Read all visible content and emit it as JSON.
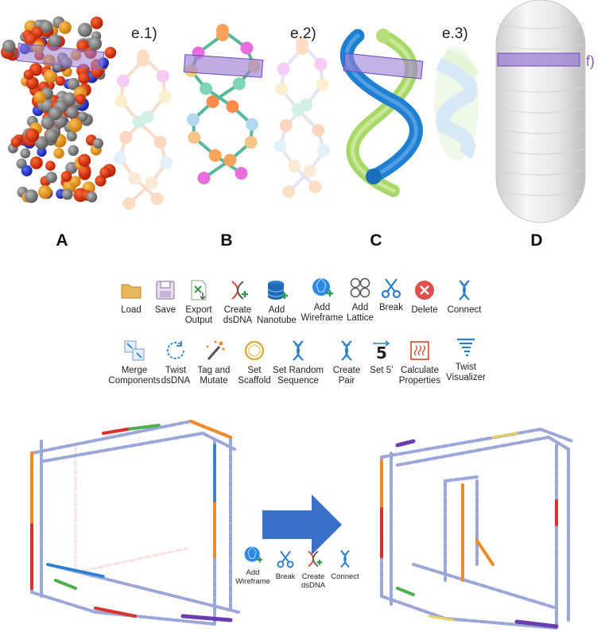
{
  "panels": {
    "a": "A",
    "b": "B",
    "c": "C",
    "d": "D",
    "e1": "e.1)",
    "e2": "e.2)",
    "e3": "e.3)",
    "f": "f)"
  },
  "toolbar_row1": [
    {
      "label": "Load",
      "icon": "folder-icon"
    },
    {
      "label": "Save",
      "icon": "save-icon"
    },
    {
      "label": "Export\nOutput",
      "icon": "export-icon"
    },
    {
      "label": "Create\ndsDNA",
      "icon": "create-dsdna-icon"
    },
    {
      "label": "Add\nNanotube",
      "icon": "database-icon"
    },
    {
      "label": "Add\nWireframe",
      "icon": "wireframe-icon"
    },
    {
      "label": "Add\nLattice",
      "icon": "lattice-icon"
    },
    {
      "label": "Break",
      "icon": "scissors-icon"
    },
    {
      "label": "Delete",
      "icon": "delete-icon"
    },
    {
      "label": "Connect",
      "icon": "dna-icon"
    }
  ],
  "toolbar_row2": [
    {
      "label": "Merge\nComponents",
      "icon": "merge-icon"
    },
    {
      "label": "Twist\ndsDNA",
      "icon": "twist-icon"
    },
    {
      "label": "Tag and\nMutate",
      "icon": "wand-icon"
    },
    {
      "label": "Set\nScaffold",
      "icon": "ring-icon"
    },
    {
      "label": "Set Random\nSequence",
      "icon": "dna-icon"
    },
    {
      "label": "Create\nPair",
      "icon": "dna-icon"
    },
    {
      "label": "Set 5’",
      "icon": "five-prime-icon"
    },
    {
      "label": "Calculate\nProperties",
      "icon": "properties-icon"
    },
    {
      "label": "Twist\nVisualizer",
      "icon": "tornado-icon"
    }
  ],
  "workflow_tools": [
    {
      "label": "Add\nWireframe",
      "icon": "wireframe-icon"
    },
    {
      "label": "Break",
      "icon": "scissors-icon"
    },
    {
      "label": "Create\ndsDNA",
      "icon": "create-dsdna-icon"
    },
    {
      "label": "Connect",
      "icon": "dna-icon"
    }
  ],
  "colors": {
    "highlight": "#9b7fd4",
    "nanotube_blue": "#2e86d6",
    "nanotube_green": "#b8e07a",
    "arrow": "#3a6fc9"
  }
}
